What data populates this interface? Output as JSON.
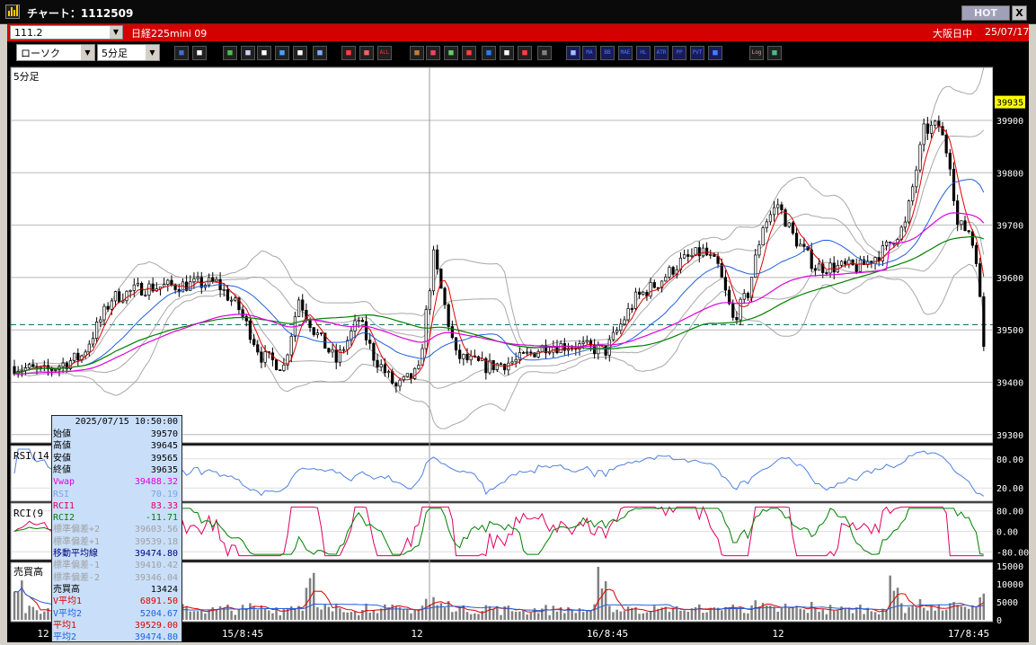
{
  "window": {
    "title": "チャート：1112509",
    "hot_label": "HOT",
    "close_label": "X"
  },
  "symbol_bar": {
    "code": "111.2",
    "name": "日経225mini 09",
    "exchange": "大阪日中",
    "date": "25/07/17"
  },
  "toolbar": {
    "chart_type": "ローソク",
    "interval": "5分足",
    "icons": [
      "zoom-icon",
      "layout-icon",
      "pencil-icon",
      "trendline-icon",
      "cursor-icon",
      "undo-icon",
      "memo-icon",
      "trash-icon",
      "candle-icon",
      "split-icon",
      "all-icon",
      "settings-icon",
      "brush-icon",
      "palette-icon",
      "alert-icon",
      "search-chart-icon",
      "grid-icon",
      "flag-icon",
      "disabled-icon",
      "table-icon",
      "ma-icon",
      "bb-icon",
      "mae-icon",
      "hl-icon",
      "atr-icon",
      "pp-icon",
      "pvt-icon",
      "box-icon",
      "log-icon",
      "export-icon"
    ],
    "icon_texts": {
      "all": "ALL",
      "ma": "MA",
      "bb": "BB",
      "mae": "MAE",
      "hl": "HL",
      "atr": "ATR",
      "pp": "PP",
      "pvt": "PVT",
      "log": "Log"
    }
  },
  "price_panel": {
    "label": "5分足",
    "price_ticks": [
      "39900",
      "39800",
      "39700",
      "39600",
      "39500",
      "39400",
      "39300"
    ],
    "current_price": "39935",
    "reference_line": "39510"
  },
  "rsi_panel": {
    "label": "RSI(14",
    "ticks": [
      "80.00",
      "20.00"
    ]
  },
  "rci_panel": {
    "label": "RCI(9",
    "ticks": [
      "80.00",
      "0.00",
      "-80.00"
    ]
  },
  "volume_panel": {
    "label": "売買高",
    "ticks": [
      "15000",
      "10000",
      "5000",
      "0"
    ]
  },
  "time_axis": [
    "12",
    "15/8:45",
    "12",
    "16/8:45",
    "12",
    "17/8:45"
  ],
  "info_box": {
    "datetime": "2025/07/15 10:50:00",
    "rows": [
      {
        "label": "始値",
        "value": "39570",
        "color": "#000000"
      },
      {
        "label": "高値",
        "value": "39645",
        "color": "#000000"
      },
      {
        "label": "安値",
        "value": "39565",
        "color": "#000000"
      },
      {
        "label": "終値",
        "value": "39635",
        "color": "#000000"
      },
      {
        "label": "Vwap",
        "value": "39488.32",
        "color": "#e000e0"
      },
      {
        "label": "RSI",
        "value": "70.19",
        "color": "#7aa2e8"
      },
      {
        "label": "RCI1",
        "value": "83.33",
        "color": "#e00060"
      },
      {
        "label": "RCI2",
        "value": "-11.71",
        "color": "#008000"
      },
      {
        "label": "標準偏差+2",
        "value": "39603.56",
        "color": "#a0a0a0"
      },
      {
        "label": "標準偏差+1",
        "value": "39539.18",
        "color": "#a0a0a0"
      },
      {
        "label": "移動平均線",
        "value": "39474.80",
        "color": "#000080"
      },
      {
        "label": "標準偏差-1",
        "value": "39410.42",
        "color": "#a0a0a0"
      },
      {
        "label": "標準偏差-2",
        "value": "39346.04",
        "color": "#a0a0a0"
      },
      {
        "label": "売買高",
        "value": "13424",
        "color": "#000000"
      },
      {
        "label": "V平均1",
        "value": "6891.50",
        "color": "#e00000"
      },
      {
        "label": "V平均2",
        "value": "5204.67",
        "color": "#2060e0"
      },
      {
        "label": "平均1",
        "value": "39529.00",
        "color": "#e00000"
      },
      {
        "label": "平均2",
        "value": "39474.80",
        "color": "#2060e0"
      }
    ]
  },
  "colors": {
    "candle_up": "#ffffff",
    "candle_down": "#000000",
    "ma_short": "#e00000",
    "ma_mid": "#2060e0",
    "ma_long": "#008000",
    "vwap": "#e000e0",
    "bollinger": "#a8a8a8",
    "rsi": "#5080e0",
    "rci1": "#e00060",
    "rci2": "#008000",
    "reference_line": "#006060",
    "accent_red": "#d40000"
  }
}
